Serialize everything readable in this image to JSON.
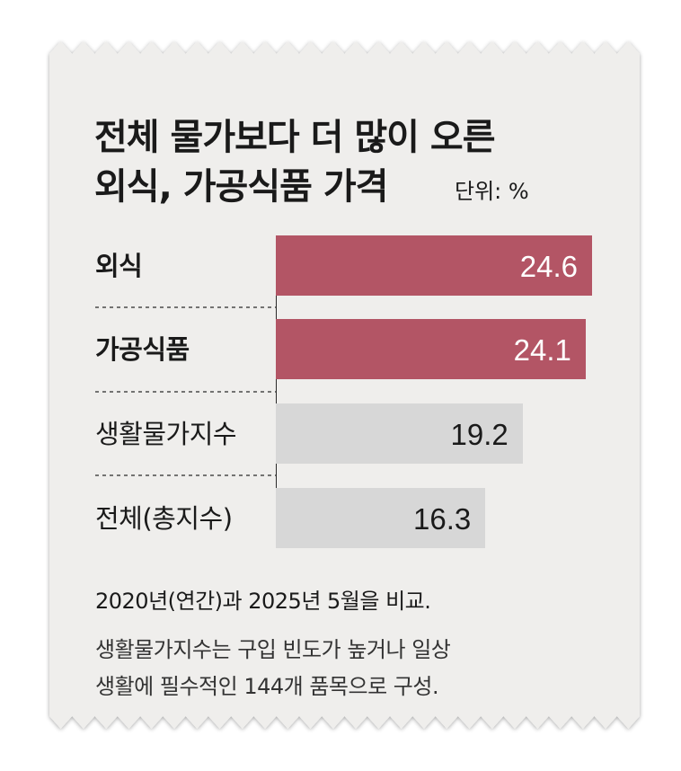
{
  "title_line1": "전체 물가보다 더 많이 오른",
  "title_line2": "외식, 가공식품 가격",
  "unit": "단위: %",
  "colors": {
    "highlight": "#b35565",
    "neutral": "#d7d7d7",
    "paper": "#efeeec",
    "highlight_text": "#ffffff",
    "neutral_text": "#1a1a1a"
  },
  "chart_data": {
    "type": "bar",
    "orientation": "horizontal",
    "categories": [
      "외식",
      "가공식품",
      "생활물가지수",
      "전체(총지수)"
    ],
    "values": [
      24.6,
      24.1,
      19.2,
      16.3
    ],
    "value_labels": [
      "24.6",
      "24.1",
      "19.2",
      "16.3"
    ],
    "highlighted": [
      true,
      true,
      false,
      false
    ],
    "xlim": [
      0,
      24.6
    ],
    "grid": false,
    "legend": "none"
  },
  "notes": [
    "2020년(연간)과 2025년 5월을 비교.",
    "생활물가지수는 구입 빈도가 높거나 일상",
    "생활에 필수적인 144개 품목으로 구성."
  ]
}
